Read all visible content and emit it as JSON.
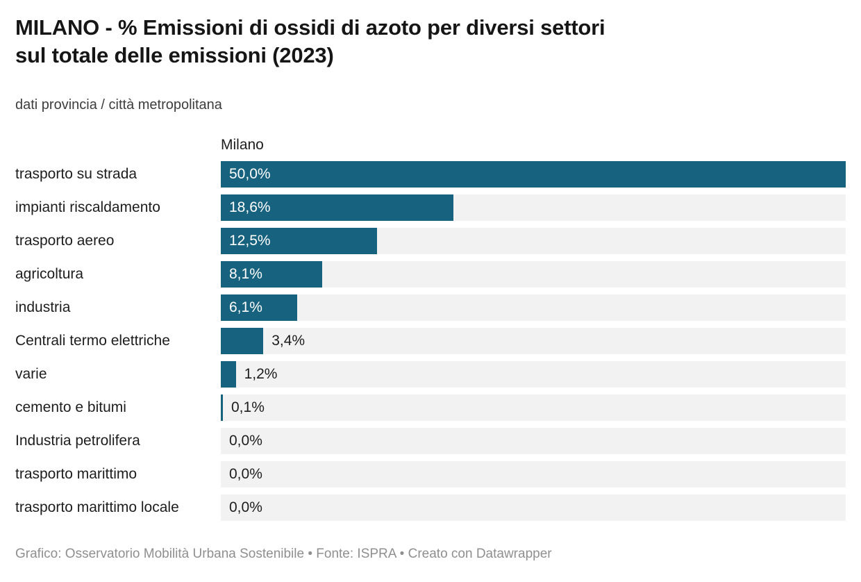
{
  "header": {
    "title": "MILANO - % Emissioni di ossidi di azoto per diversi settori sul totale delle emissioni (2023)",
    "title_lines": [
      "MILANO - % Emissioni di ossidi di azoto per diversi settori",
      "sul totale delle emissioni (2023)"
    ],
    "subtitle": "dati provincia / città metropolitana"
  },
  "chart_data": {
    "type": "bar",
    "orientation": "horizontal",
    "column_header": "Milano",
    "categories": [
      "trasporto su strada",
      "impianti riscaldamento",
      "trasporto aereo",
      "agricoltura",
      "industria",
      "Centrali termo elettriche",
      "varie",
      "cemento e bitumi",
      "Industria petrolifera",
      "trasporto marittimo",
      "trasporto marittimo locale"
    ],
    "values": [
      50.0,
      18.6,
      12.5,
      8.1,
      6.1,
      3.4,
      1.2,
      0.1,
      0.0,
      0.0,
      0.0
    ],
    "value_labels": [
      "50,0%",
      "18,6%",
      "12,5%",
      "8,1%",
      "6,1%",
      "3,4%",
      "1,2%",
      "0,1%",
      "0,0%",
      "0,0%",
      "0,0%"
    ],
    "xlim": [
      0,
      50
    ],
    "grid": false,
    "legend": "none",
    "bar_color": "#17627E",
    "track_color": "#f2f2f2",
    "inside_label_threshold": 5
  },
  "footer": {
    "text": "Grafico: Osservatorio Mobilità Urbana Sostenibile • Fonte: ISPRA • Creato con Datawrapper"
  }
}
